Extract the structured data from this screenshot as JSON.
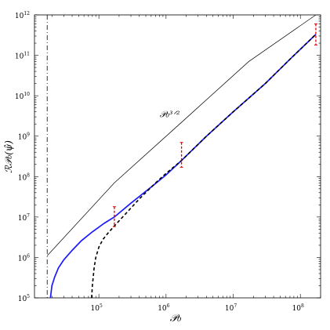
{
  "chart_data": {
    "type": "line",
    "xscale": "log",
    "yscale": "log",
    "xlim": [
      11000,
      200000000
    ],
    "ylim": [
      100000,
      1000000000000
    ],
    "xlabel": "𝒫₀",
    "ylabel": "ℛ𝒫₀(ψ̂)",
    "x_tick_exponents": [
      5,
      6,
      7,
      8
    ],
    "y_tick_exponents": [
      5,
      6,
      7,
      8,
      9,
      10,
      11,
      12
    ],
    "grid": false,
    "annotation": {
      "text": "𝒫₀³ᐟ²",
      "x": 2000000,
      "y": 3500000000
    },
    "vertical_line": {
      "x": 17000,
      "style": "dash-dot"
    },
    "series": [
      {
        "style": "thin-black",
        "x": [
          17000,
          170000,
          1700000,
          17000000,
          170000000
        ],
        "y": [
          1100000,
          70000000,
          2200000000,
          70000000000,
          1000000000000
        ]
      },
      {
        "style": "solid-blue",
        "x": [
          19000,
          20000,
          22000,
          25000,
          30000,
          40000,
          55000,
          80000,
          120000,
          170000,
          300000,
          600000,
          1000000,
          1700000,
          4000000,
          10000000,
          30000000,
          70000000,
          170000000
        ],
        "y": [
          100000,
          200000,
          330000,
          550000,
          870000,
          1500000,
          2600000,
          4300000,
          7000000,
          10000000,
          22000000,
          55000000,
          110000000,
          250000000,
          1000000000,
          4000000000,
          20000000000,
          80000000000,
          330000000000
        ]
      },
      {
        "style": "dashed-black",
        "x": [
          78000,
          80000,
          85000,
          90000,
          100000,
          115000,
          135000,
          170000,
          250000,
          400000,
          700000,
          1000000,
          1700000,
          4000000,
          10000000,
          30000000,
          70000000,
          170000000
        ],
        "y": [
          100000,
          200000,
          550000,
          1000000,
          1800000,
          2800000,
          3900000,
          6000000,
          12000000,
          28000000,
          70000000,
          120000000,
          250000000,
          1000000000,
          4000000000,
          20000000000,
          80000000000,
          330000000000
        ]
      },
      {
        "style": "red-errorbar",
        "x": [
          170000,
          1700000,
          170000000
        ],
        "y": [
          10000000,
          330000000,
          330000000000
        ],
        "ylow": [
          5800000,
          170000000,
          180000000000
        ],
        "yhigh": [
          18000000,
          700000000,
          600000000000
        ]
      }
    ]
  }
}
